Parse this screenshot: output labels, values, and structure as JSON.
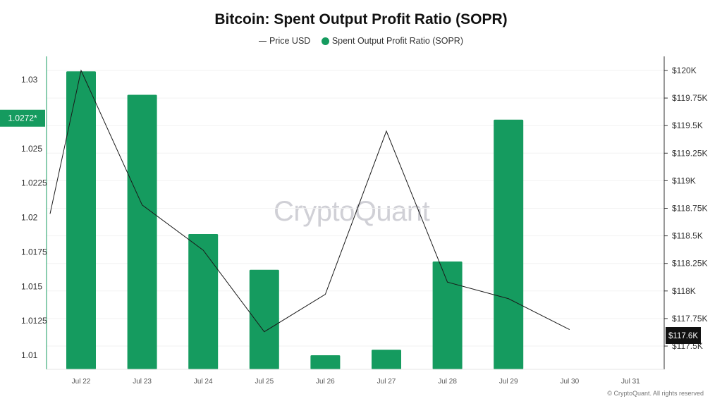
{
  "title": "Bitcoin: Spent Output Profit Ratio (SOPR)",
  "legend": {
    "price_label": "Price USD",
    "sopr_label": "Spent Output Profit Ratio (SOPR)"
  },
  "watermark": "CryptoQuant",
  "credit": "© CryptoQuant. All rights reserved",
  "colors": {
    "sopr": "#159b5f",
    "price": "#1a1a1a",
    "current_price_badge": "#111111"
  },
  "chart_data": {
    "type": "bar",
    "categories": [
      "Jul 22",
      "Jul 23",
      "Jul 24",
      "Jul 25",
      "Jul 26",
      "Jul 27",
      "Jul 28",
      "Jul 29",
      "Jul 30",
      "Jul 31"
    ],
    "series": [
      {
        "name": "Spent Output Profit Ratio (SOPR)",
        "type": "bar",
        "axis": "left",
        "values": [
          1.0306,
          1.0289,
          1.0188,
          1.0162,
          1.01,
          1.0104,
          1.0168,
          1.0271,
          null,
          null
        ]
      },
      {
        "name": "Price USD",
        "type": "line",
        "axis": "right",
        "start_value": 118700,
        "values": [
          120000,
          118780,
          118370,
          117630,
          117970,
          119450,
          118080,
          117930,
          117650,
          null
        ]
      }
    ],
    "y_left": {
      "ticks": [
        "1.01",
        "1.0125",
        "1.015",
        "1.0175",
        "1.02",
        "1.0225",
        "1.025",
        "1.03"
      ],
      "tick_values": [
        1.01,
        1.0125,
        1.015,
        1.0175,
        1.02,
        1.0225,
        1.025,
        1.03
      ],
      "range": [
        1.0095,
        1.0305
      ]
    },
    "y_right": {
      "ticks": [
        "$117.5K",
        "$117.75K",
        "$118K",
        "$118.25K",
        "$118.5K",
        "$118.75K",
        "$119K",
        "$119.25K",
        "$119.5K",
        "$119.75K",
        "$120K"
      ],
      "tick_values": [
        117500,
        117750,
        118000,
        118250,
        118500,
        118750,
        119000,
        119250,
        119500,
        119750,
        120000
      ],
      "range": [
        117300,
        120100
      ]
    },
    "current_sopr_label": "1.0272*",
    "current_sopr_value": 1.0272,
    "current_price_label": "$117.6K",
    "current_price_value": 117650,
    "grid": true
  }
}
